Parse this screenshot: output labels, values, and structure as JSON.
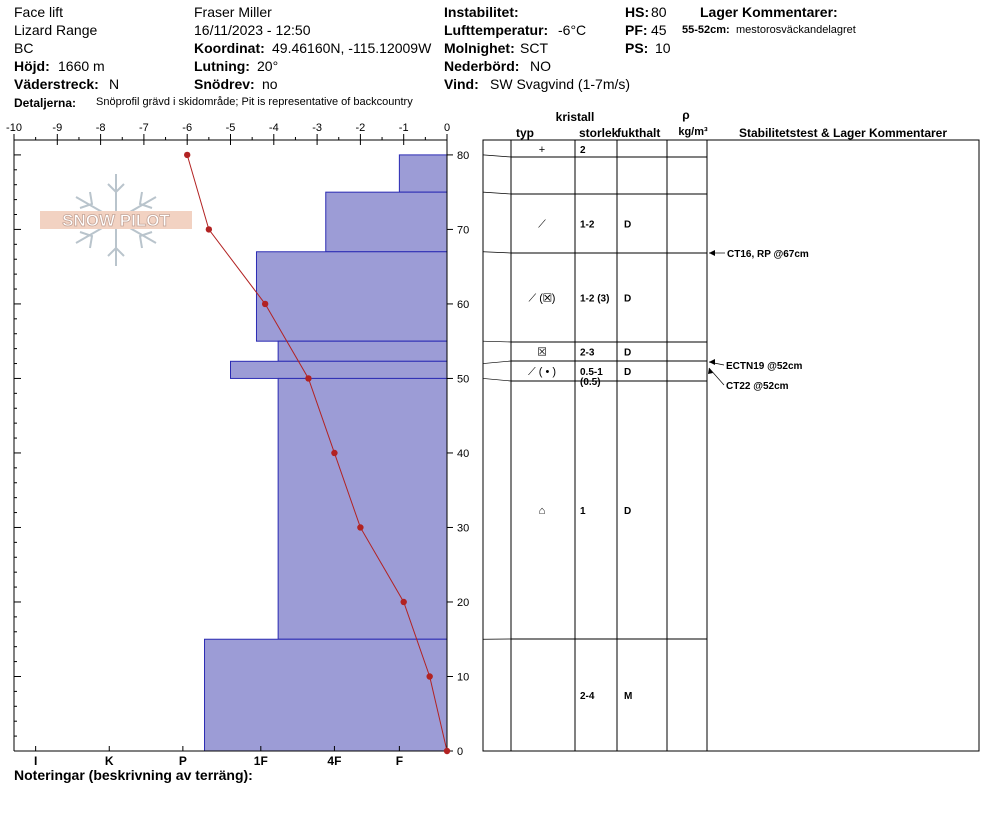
{
  "header": {
    "site": "Face lift",
    "range": "Lizard Range",
    "region": "BC",
    "elevation_label": "Höjd:",
    "elevation": "1660 m",
    "aspect_label": "Väderstreck:",
    "aspect": "N",
    "details_label": "Detaljerna:",
    "details": "Snöprofil grävd i skidområde;  Pit is representative of backcountry",
    "observer": "Fraser Miller",
    "datetime": "16/11/2023 - 12:50",
    "coord_label": "Koordinat:",
    "coordinates": "49.46160N, -115.12009W",
    "slope_label": "Lutning:",
    "slope": "20°",
    "drift_label": "Snödrev:",
    "drift": "no",
    "instability_label": "Instabilitet:",
    "airtemp_label": "Lufttemperatur:",
    "airtemp": "-6°C",
    "sky_label": "Molnighet:",
    "sky": "SCT",
    "precip_label": "Nederbörd:",
    "precip": "NO",
    "wind_label": "Vind:",
    "wind": "SW  Svagvind (1-7m/s)",
    "hs_label": "HS:",
    "hs": "80",
    "pf_label": "PF:",
    "pf": "45",
    "ps_label": "PS:",
    "ps": "10",
    "layer_comments_label": "Lager Kommentarer:",
    "layer_comment_depth": "55-52cm:",
    "layer_comment_text": "mestorosväckandelagret"
  },
  "notes_label": "Noteringar (beskrivning av terräng):",
  "logo_text": "SNOW PILOT",
  "table": {
    "crystal_label": "kristall",
    "type_label": "typ",
    "size_label": "storlek",
    "moisture_label": "fukthalt",
    "density_label": "ρ",
    "density_unit": "kg/m³",
    "stability_label": "Stabilitetstest & Lager Kommentarer",
    "rows": [
      {
        "top": 80,
        "bottom": 75,
        "symbol": "+",
        "icon": "new-snow-icon",
        "size": "2",
        "size2": "",
        "moisture": ""
      },
      {
        "top": 75,
        "bottom": 67,
        "symbol": "⟋",
        "icon": "decomposing-fragments-icon",
        "size": "1-2",
        "size2": "",
        "moisture": "D"
      },
      {
        "top": 67,
        "bottom": 55,
        "symbol": "⟋ (☒)",
        "icon": "fragments-with-surface-hoar-icon",
        "size": "1-2 (3)",
        "size2": "",
        "moisture": "D"
      },
      {
        "top": 55,
        "bottom": 52,
        "symbol": "☒",
        "icon": "surface-hoar-icon",
        "size": "2-3",
        "size2": "",
        "moisture": "D"
      },
      {
        "top": 52,
        "bottom": 50,
        "symbol": "⟋ ( • )",
        "icon": "fragments-with-rounds-icon",
        "size": "0.5-1",
        "size2": "(0.5)",
        "moisture": "D"
      },
      {
        "top": 50,
        "bottom": 15,
        "symbol": "⌂",
        "icon": "faceted-rounded-icon",
        "size": "1",
        "size2": "",
        "moisture": "D"
      },
      {
        "top": 15,
        "bottom": 0,
        "symbol": "",
        "icon": "",
        "size": "2-4",
        "size2": "",
        "moisture": "M"
      }
    ],
    "stability_tests": [
      {
        "text": "CT16, RP @67cm",
        "depth": 67
      },
      {
        "text": "ECTN19 @52cm",
        "depth": 52
      },
      {
        "text": "CT22 @52cm",
        "depth": 52
      }
    ]
  },
  "chart_data": {
    "type": "bar",
    "title": "",
    "temp_axis": {
      "ticks": [
        "-10",
        "-9",
        "-8",
        "-7",
        "-6",
        "-5",
        "-4",
        "-3",
        "-2",
        "-1",
        "0"
      ],
      "range": [
        -10,
        0
      ]
    },
    "depth_axis": {
      "ticks": [
        "0",
        "10",
        "20",
        "30",
        "40",
        "50",
        "60",
        "70",
        "80"
      ],
      "range": [
        0,
        82
      ]
    },
    "hardness_axis": {
      "ticks": [
        "I",
        "K",
        "P",
        "1F",
        "4F",
        "F"
      ]
    },
    "hardness_layers": [
      {
        "top": 80,
        "bottom": 75,
        "hardness": -1.1
      },
      {
        "top": 75,
        "bottom": 67,
        "hardness": -2.8
      },
      {
        "top": 67,
        "bottom": 55,
        "hardness": -4.4
      },
      {
        "top": 55,
        "bottom": 52.3,
        "hardness": -3.9
      },
      {
        "top": 52.3,
        "bottom": 50,
        "hardness": -5.0
      },
      {
        "top": 50,
        "bottom": 15,
        "hardness": -3.9
      },
      {
        "top": 15,
        "bottom": 0,
        "hardness": -5.6
      }
    ],
    "temperature_profile": {
      "depth": [
        80,
        70,
        60,
        50,
        40,
        30,
        20,
        10,
        0
      ],
      "temp": [
        -6.0,
        -5.5,
        -4.2,
        -3.2,
        -2.6,
        -2.0,
        -1.0,
        -0.4,
        0.0
      ]
    },
    "colors": {
      "layer_fill": "#9c9cd6",
      "layer_stroke": "#2b2bb3",
      "temp_line": "#b22222"
    }
  }
}
